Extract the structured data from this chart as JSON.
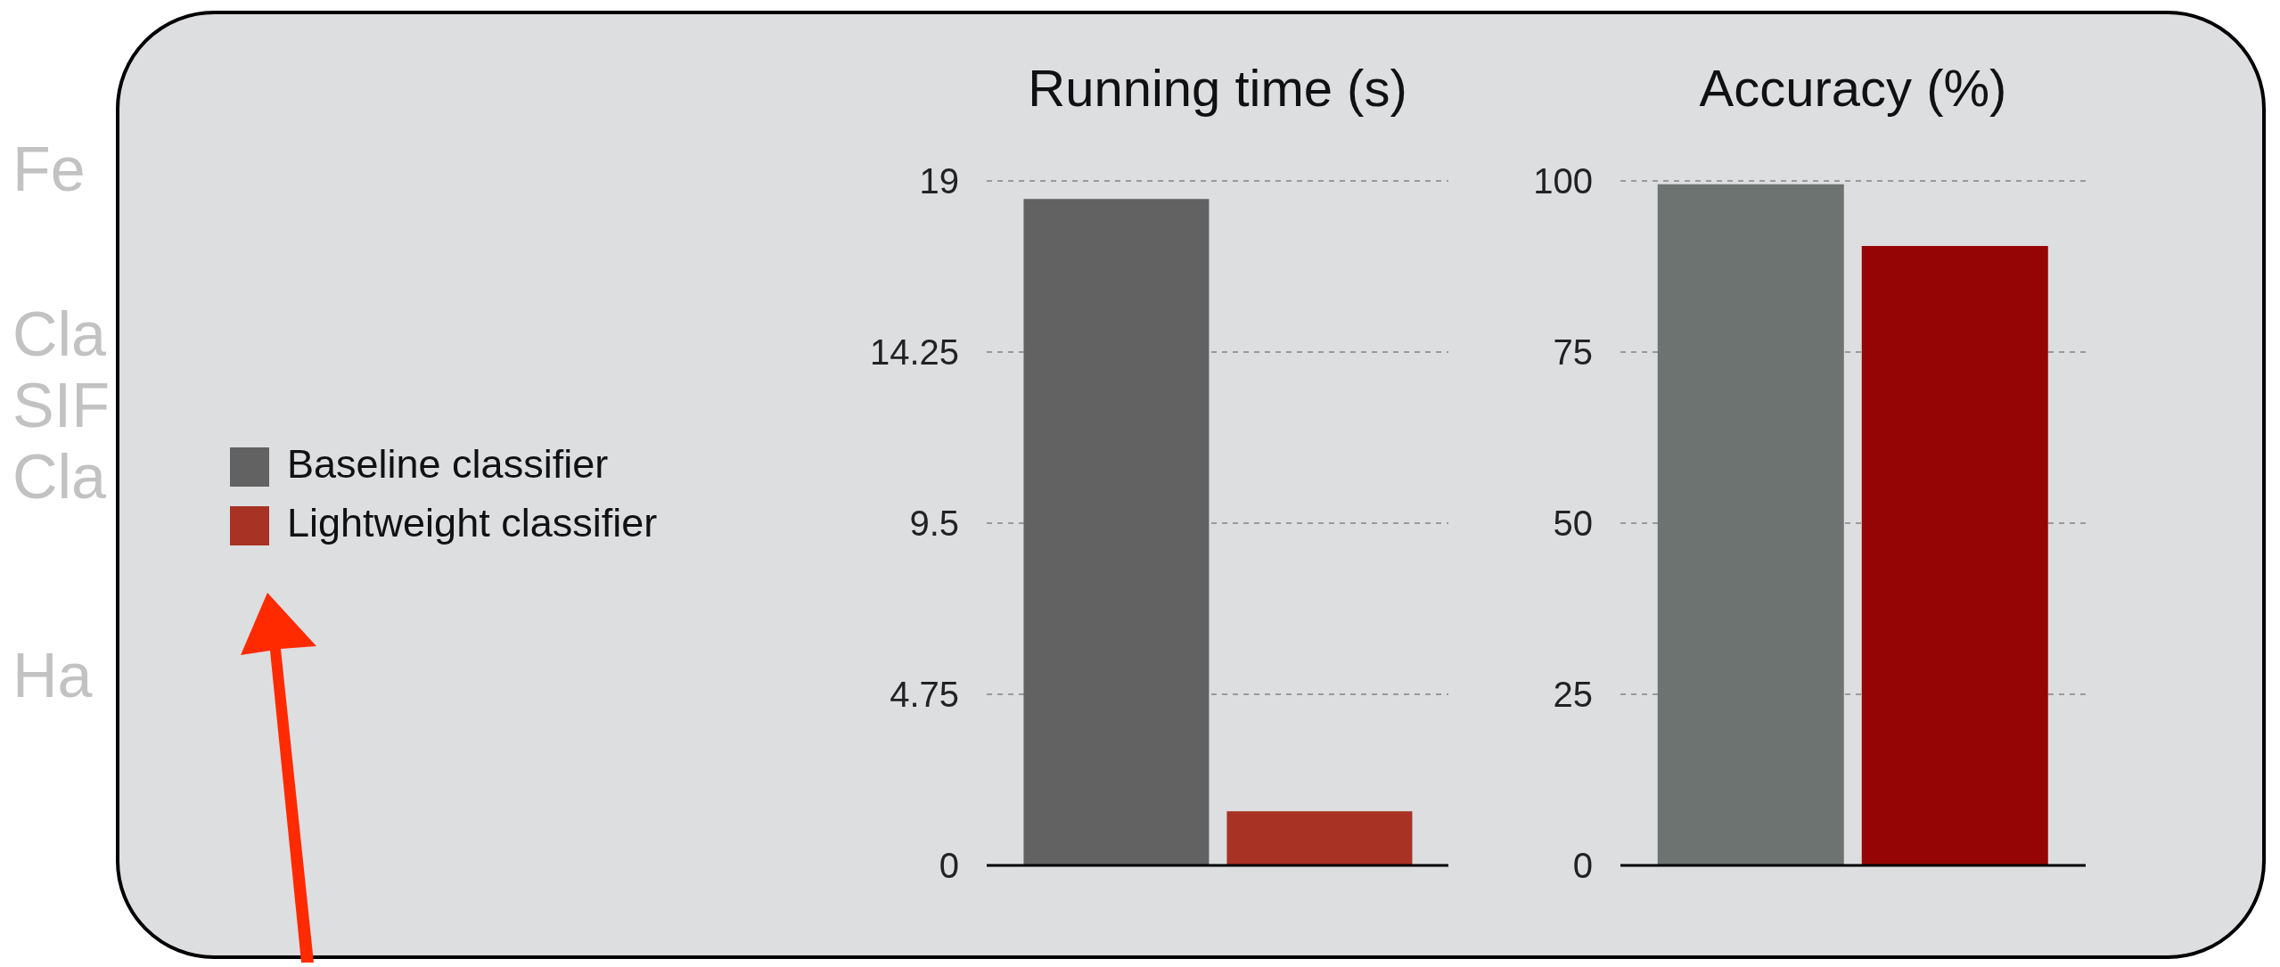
{
  "chart_data": [
    {
      "type": "bar",
      "title": "Running time (s)",
      "categories": [
        null
      ],
      "series": [
        {
          "name": "Baseline classifier",
          "color": "#636262",
          "values": [
            18.5
          ]
        },
        {
          "name": "Lightweight classifier",
          "color": "#a83224",
          "values": [
            1.5
          ]
        }
      ],
      "ylim": [
        0,
        19
      ],
      "yticks": [
        0,
        4.75,
        9.5,
        14.25,
        19
      ],
      "grid": "y",
      "legend": "left",
      "annotations": [
        "Fe",
        "Cla",
        "SIF",
        "Cla",
        "Ha"
      ]
    },
    {
      "type": "bar",
      "title": "Accuracy (%)",
      "categories": [
        null
      ],
      "series": [
        {
          "color": "#6d7370",
          "values": [
            99.5
          ]
        },
        {
          "color": "#960505",
          "values": [
            90.5
          ]
        }
      ],
      "ylim": [
        0,
        100
      ],
      "yticks": [
        0,
        25,
        50,
        75,
        100
      ],
      "grid": "y"
    }
  ]
}
